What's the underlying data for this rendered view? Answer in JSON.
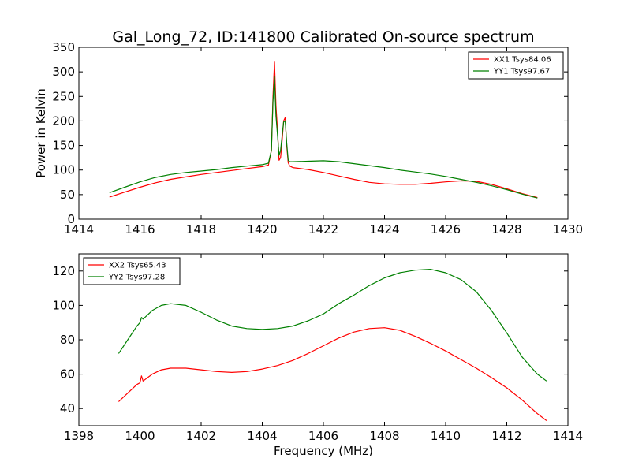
{
  "chart_data": [
    {
      "type": "line",
      "title": "Gal_Long_72, ID:141800 Calibrated On-source spectrum",
      "xlabel": "",
      "ylabel": "Power in Kelvin",
      "xlim": [
        1414,
        1430
      ],
      "ylim": [
        0,
        350
      ],
      "xticks": [
        "1414",
        "1416",
        "1418",
        "1420",
        "1422",
        "1424",
        "1426",
        "1428",
        "1430"
      ],
      "yticks": [
        "0",
        "50",
        "100",
        "150",
        "200",
        "250",
        "300",
        "350"
      ],
      "legend_position": "top-right",
      "series": [
        {
          "name": "XX1 Tsys84.06",
          "color": "#ff0000",
          "x": [
            1415.0,
            1415.5,
            1416.0,
            1416.5,
            1417.0,
            1417.5,
            1418.0,
            1418.5,
            1419.0,
            1419.5,
            1420.0,
            1420.2,
            1420.3,
            1420.35,
            1420.4,
            1420.45,
            1420.5,
            1420.55,
            1420.6,
            1420.65,
            1420.7,
            1420.75,
            1420.8,
            1420.85,
            1420.9,
            1421.0,
            1421.5,
            1422.0,
            1422.5,
            1423.0,
            1423.5,
            1424.0,
            1424.5,
            1425.0,
            1425.5,
            1426.0,
            1426.5,
            1427.0,
            1427.5,
            1428.0,
            1428.5,
            1429.0
          ],
          "values": [
            45,
            55,
            65,
            74,
            81,
            86,
            91,
            95,
            99,
            103,
            107,
            110,
            140,
            250,
            320,
            230,
            180,
            120,
            125,
            160,
            200,
            207,
            150,
            115,
            108,
            105,
            101,
            95,
            88,
            81,
            75,
            72,
            71,
            71,
            73,
            76,
            78,
            77,
            71,
            62,
            52,
            44
          ]
        },
        {
          "name": "YY1 Tsys97.67",
          "color": "#008000",
          "x": [
            1415.0,
            1415.5,
            1416.0,
            1416.5,
            1417.0,
            1417.5,
            1418.0,
            1418.5,
            1419.0,
            1419.5,
            1420.0,
            1420.2,
            1420.3,
            1420.35,
            1420.4,
            1420.45,
            1420.5,
            1420.55,
            1420.6,
            1420.65,
            1420.7,
            1420.75,
            1420.8,
            1420.85,
            1420.9,
            1421.0,
            1421.5,
            1422.0,
            1422.5,
            1423.0,
            1423.5,
            1424.0,
            1424.5,
            1425.0,
            1425.5,
            1426.0,
            1426.5,
            1427.0,
            1427.5,
            1428.0,
            1428.5,
            1429.0
          ],
          "values": [
            54,
            65,
            76,
            85,
            91,
            95,
            98,
            101,
            105,
            108,
            111,
            114,
            140,
            240,
            290,
            210,
            170,
            130,
            140,
            170,
            198,
            200,
            155,
            120,
            117,
            117,
            118,
            119,
            117,
            113,
            109,
            105,
            100,
            96,
            92,
            87,
            81,
            75,
            68,
            60,
            51,
            43
          ]
        }
      ]
    },
    {
      "type": "line",
      "title": "",
      "xlabel": "Frequency (MHz)",
      "ylabel": "",
      "xlim": [
        1398,
        1414
      ],
      "ylim": [
        30,
        130
      ],
      "xticks": [
        "1398",
        "1400",
        "1402",
        "1404",
        "1406",
        "1408",
        "1410",
        "1412",
        "1414"
      ],
      "yticks": [
        "40",
        "60",
        "80",
        "100",
        "120"
      ],
      "legend_position": "top-left",
      "series": [
        {
          "name": "XX2 Tsys65.43",
          "color": "#ff0000",
          "x": [
            1399.3,
            1399.6,
            1399.9,
            1400.0,
            1400.05,
            1400.1,
            1400.4,
            1400.7,
            1401.0,
            1401.5,
            1402.0,
            1402.5,
            1403.0,
            1403.5,
            1404.0,
            1404.5,
            1405.0,
            1405.5,
            1406.0,
            1406.5,
            1407.0,
            1407.5,
            1408.0,
            1408.5,
            1409.0,
            1409.5,
            1410.0,
            1410.5,
            1411.0,
            1411.5,
            1412.0,
            1412.5,
            1413.0,
            1413.3
          ],
          "values": [
            44,
            49,
            54,
            55,
            59,
            56,
            60,
            62.5,
            63.5,
            63.5,
            62.5,
            61.5,
            61,
            61.5,
            63,
            65,
            68,
            72,
            76.5,
            81,
            84.5,
            86.5,
            87,
            85.5,
            82,
            78,
            73.5,
            68.5,
            63.5,
            58,
            52,
            45,
            37,
            33
          ]
        },
        {
          "name": "YY2 Tsys97.28",
          "color": "#008000",
          "x": [
            1399.3,
            1399.6,
            1399.9,
            1400.0,
            1400.05,
            1400.1,
            1400.4,
            1400.7,
            1401.0,
            1401.5,
            1402.0,
            1402.5,
            1403.0,
            1403.5,
            1404.0,
            1404.5,
            1405.0,
            1405.5,
            1406.0,
            1406.5,
            1407.0,
            1407.5,
            1408.0,
            1408.5,
            1409.0,
            1409.5,
            1410.0,
            1410.5,
            1411.0,
            1411.5,
            1412.0,
            1412.5,
            1413.0,
            1413.3
          ],
          "values": [
            72,
            80,
            88,
            90,
            93,
            92,
            97,
            100,
            101,
            100,
            96,
            91.5,
            88,
            86.5,
            86,
            86.5,
            88,
            91,
            95,
            101,
            106,
            111.5,
            116,
            119,
            120.5,
            121,
            119,
            115,
            108,
            97,
            84,
            70,
            60,
            56
          ]
        }
      ]
    }
  ]
}
